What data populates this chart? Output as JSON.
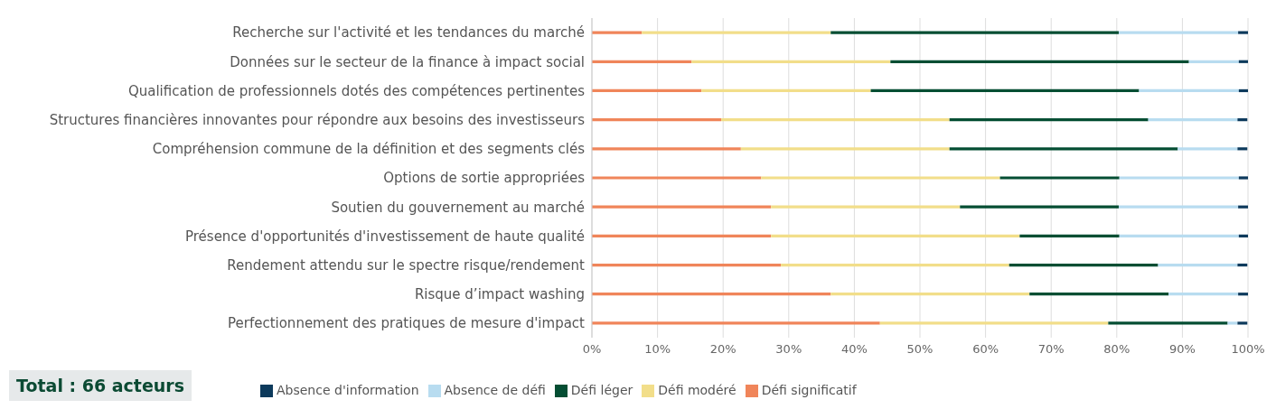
{
  "chart_data": {
    "type": "bar",
    "orientation": "horizontal",
    "stacked": true,
    "categories": [
      "Recherche sur l'activité et les tendances du marché",
      "Données sur le secteur de la finance à impact social",
      "Qualification de professionnels dotés des compétences pertinentes",
      "Structures financières innovantes pour répondre aux besoins des investisseurs",
      "Compréhension commune de la définition et des segments clés",
      "Options de sortie appropriées",
      "Soutien du gouvernement au marché",
      "Présence d'opportunités d'investissement de haute qualité",
      "Rendement attendu sur le spectre risque/rendement",
      "Risque d’impact washing",
      "Perfectionnement des pratiques de mesure d'impact"
    ],
    "series": [
      {
        "name": "Défi significatif",
        "color": "#f0855a",
        "values": [
          7.6,
          15.2,
          16.7,
          19.7,
          22.7,
          25.8,
          27.3,
          27.3,
          28.8,
          36.4,
          43.9
        ]
      },
      {
        "name": "Défi modéré",
        "color": "#f2de8a",
        "values": [
          28.8,
          30.3,
          25.8,
          34.8,
          31.8,
          36.4,
          28.8,
          37.9,
          34.8,
          30.3,
          34.8
        ]
      },
      {
        "name": "Défi léger",
        "color": "#044e33",
        "values": [
          43.9,
          45.5,
          40.9,
          30.3,
          34.8,
          18.2,
          24.2,
          15.2,
          22.7,
          21.2,
          18.2
        ]
      },
      {
        "name": "Absence de défi",
        "color": "#b8dcf0",
        "values": [
          18.2,
          7.6,
          15.2,
          13.6,
          9.1,
          18.2,
          18.2,
          18.2,
          12.1,
          10.6,
          1.5
        ]
      },
      {
        "name": "Absence d'information",
        "color": "#0d3a5c",
        "values": [
          1.5,
          1.5,
          1.5,
          1.5,
          1.5,
          1.5,
          1.5,
          1.5,
          1.5,
          1.5,
          1.5
        ]
      }
    ],
    "xlim": [
      0,
      100
    ],
    "xticks": [
      {
        "value": 0,
        "label": "0%"
      },
      {
        "value": 10,
        "label": "10%"
      },
      {
        "value": 20,
        "label": "20%"
      },
      {
        "value": 30,
        "label": "30%"
      },
      {
        "value": 40,
        "label": "40%"
      },
      {
        "value": 50,
        "label": "50%"
      },
      {
        "value": 60,
        "label": "60%"
      },
      {
        "value": 70,
        "label": "70%"
      },
      {
        "value": 80,
        "label": "80%"
      },
      {
        "value": 90,
        "label": "90%"
      },
      {
        "value": 100,
        "label": "100%"
      }
    ],
    "grid": "x",
    "legend": "bottom",
    "annotations": [
      "Total : 66 acteurs"
    ]
  }
}
